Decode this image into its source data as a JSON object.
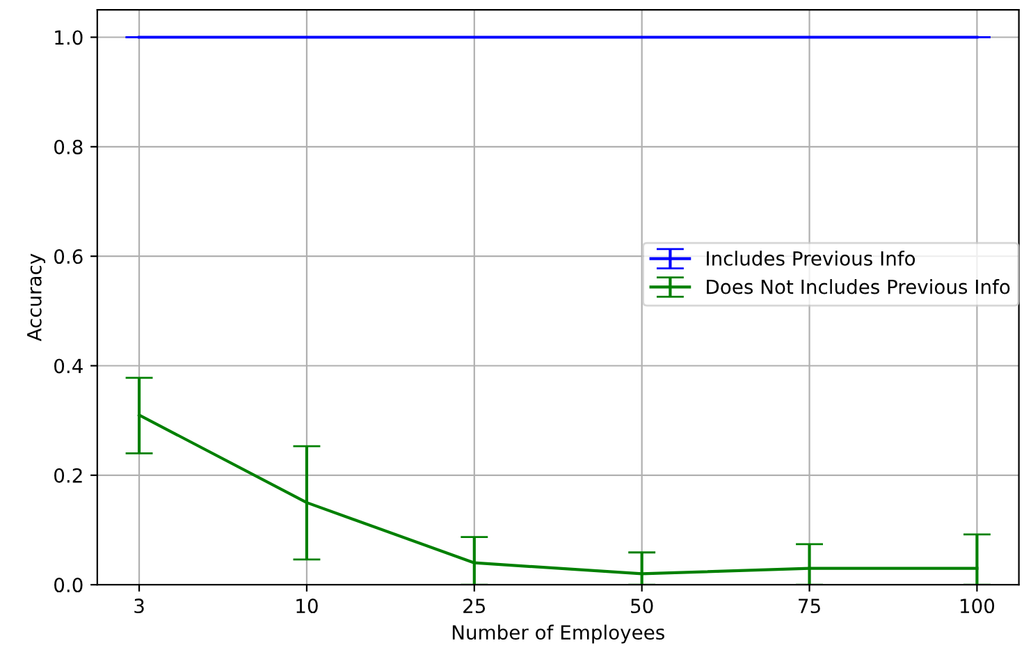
{
  "chart_data": {
    "type": "line",
    "xlabel": "Number of Employees",
    "ylabel": "Accuracy",
    "categories": [
      "3",
      "10",
      "25",
      "50",
      "75",
      "100"
    ],
    "series": [
      {
        "name": "Includes Previous Info",
        "color": "#0000ff",
        "values": [
          1.0,
          1.0,
          1.0,
          1.0,
          1.0,
          1.0
        ],
        "errors": [
          [
            1.0,
            1.0
          ],
          [
            1.0,
            1.0
          ],
          [
            1.0,
            1.0
          ],
          [
            1.0,
            1.0
          ],
          [
            1.0,
            1.0
          ],
          [
            1.0,
            1.0
          ]
        ]
      },
      {
        "name": "Does Not Includes Previous Info",
        "color": "#008000",
        "values": [
          0.31,
          0.15,
          0.04,
          0.02,
          0.03,
          0.03
        ],
        "errors": [
          [
            0.24,
            0.378
          ],
          [
            0.046,
            0.253
          ],
          [
            0.0,
            0.087
          ],
          [
            0.0,
            0.059
          ],
          [
            0.0,
            0.074
          ],
          [
            0.0,
            0.092
          ]
        ]
      }
    ],
    "ylim": [
      0,
      1.05
    ],
    "yticks": [
      {
        "value": 0,
        "label": "0.0"
      },
      {
        "value": 0.2,
        "label": "0.2"
      },
      {
        "value": 0.4,
        "label": "0.4"
      },
      {
        "value": 0.6,
        "label": "0.6"
      },
      {
        "value": 0.8,
        "label": "0.8"
      },
      {
        "value": 1.0,
        "label": "1.0"
      }
    ],
    "grid": true,
    "legend": "right",
    "line_style": "solid",
    "marker": "none"
  }
}
